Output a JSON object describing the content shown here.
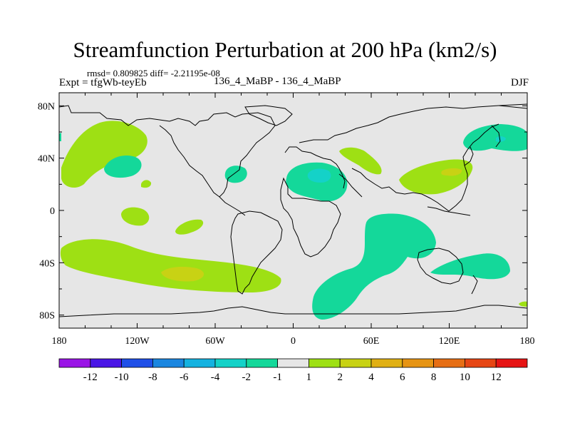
{
  "title": "Streamfunction Perturbation at 200 hPa (km2/s)",
  "stats": "rmsd= 0.809825 diff= -2.21195e-08",
  "expt_label": "Expt = tfgWb-teyEb",
  "center_label": "136_4_MaBP - 136_4_MaBP",
  "season": "DJF",
  "chart_data": {
    "type": "heatmap",
    "title": "Streamfunction Perturbation at 200 hPa (km2/s)",
    "x_ticks": [
      "180",
      "120W",
      "60W",
      "0",
      "60E",
      "120E",
      "180"
    ],
    "y_ticks": [
      "80N",
      "40N",
      "0",
      "40S",
      "80S"
    ],
    "xlim": [
      -180,
      180
    ],
    "ylim": [
      -90,
      90
    ],
    "colorbar": {
      "colors": [
        "#9a14e6",
        "#4a16e6",
        "#1f4fe8",
        "#1a86e0",
        "#14b2e0",
        "#14d2c8",
        "#14d89a",
        "#e6e6e6",
        "#9ee014",
        "#c8d214",
        "#e0b014",
        "#e69414",
        "#e66e14",
        "#e64614",
        "#e61414"
      ],
      "labels": [
        "-12",
        "-10",
        "-8",
        "-6",
        "-4",
        "-2",
        "-1",
        "1",
        "2",
        "4",
        "6",
        "8",
        "10",
        "12"
      ]
    },
    "regions": [
      {
        "name": "north-pacific-positive",
        "color": "#9ee014",
        "lon": [
          -176,
          -140
        ],
        "lat": [
          30,
          62
        ]
      },
      {
        "name": "north-atlantic-negative",
        "color": "#14d89a",
        "lon": [
          -52,
          -35
        ],
        "lat": [
          20,
          35
        ]
      },
      {
        "name": "europe-negative",
        "color": "#14d89a",
        "lon": [
          -5,
          40
        ],
        "lat": [
          15,
          40
        ]
      },
      {
        "name": "europe-core-negative",
        "color": "#14d2c8",
        "lon": [
          8,
          30
        ],
        "lat": [
          22,
          32
        ]
      },
      {
        "name": "nw-pacific-negative",
        "color": "#14d89a",
        "lon": [
          128,
          176
        ],
        "lat": [
          48,
          67
        ]
      },
      {
        "name": "east-asia-positive",
        "color": "#9ee014",
        "lon": [
          78,
          135
        ],
        "lat": [
          15,
          38
        ]
      },
      {
        "name": "south-pacific-positive",
        "color": "#9ee014",
        "lon": [
          -170,
          -35
        ],
        "lat": [
          -63,
          -30
        ]
      },
      {
        "name": "south-pacific-core",
        "color": "#c8d214",
        "lon": [
          -100,
          -60
        ],
        "lat": [
          -55,
          -45
        ]
      },
      {
        "name": "indian-ocean-negative",
        "color": "#14d89a",
        "lon": [
          20,
          110
        ],
        "lat": [
          -78,
          -3
        ]
      },
      {
        "name": "south-indian-negative",
        "color": "#14d89a",
        "lon": [
          110,
          164
        ],
        "lat": [
          -55,
          -30
        ]
      }
    ]
  }
}
